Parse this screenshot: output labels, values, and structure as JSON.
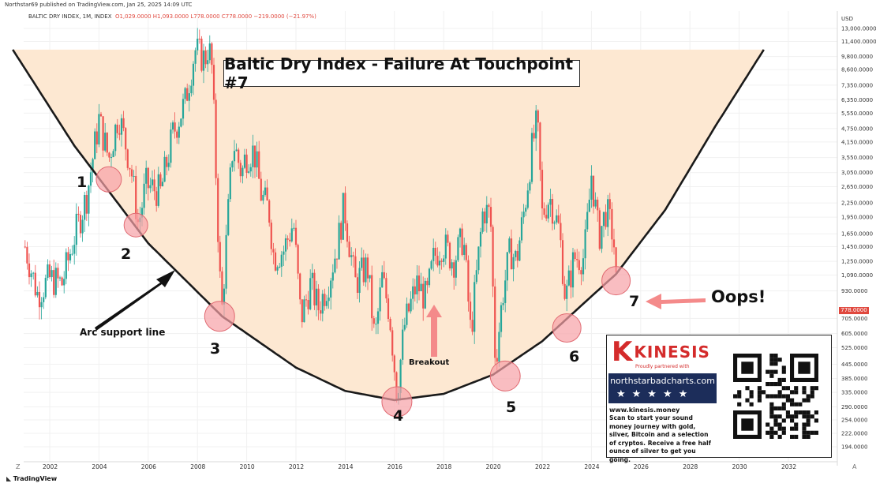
{
  "header": {
    "publisher": "Northstar69 published on TradingView.com, Jan 25, 2025 14:09 UTC",
    "symbol_line": "BALTIC DRY INDEX, 1M, INDEX",
    "ohlc": "O1,029.0000 H1,093.0000 L778.0000 C778.0000 −219.0000 (−21.97%)",
    "currency": "USD",
    "last_price": "778.0000"
  },
  "footer": {
    "brand": "TradingView",
    "left_corner": "Z",
    "right_corner": "A"
  },
  "chart_data": {
    "type": "candlestick",
    "title": "Baltic Dry Index - Failure At Touchpoint #7",
    "timeframe": "1M",
    "y_scale": "log",
    "y_ticks": [
      "13,000.0000",
      "11,400.0000",
      "9,800.0000",
      "8,600.0000",
      "7,350.0000",
      "6,350.0000",
      "5,550.0000",
      "4,750.0000",
      "4,150.0000",
      "3,550.0000",
      "3,050.0000",
      "2,650.0000",
      "2,250.0000",
      "1,950.0000",
      "1,650.0000",
      "1,450.0000",
      "1,250.0000",
      "1,090.0000",
      "930.0000",
      "705.0000",
      "605.0000",
      "525.0000",
      "445.0000",
      "385.0000",
      "335.0000",
      "290.0000",
      "254.0000",
      "222.0000",
      "194.0000"
    ],
    "x_ticks": [
      "2002",
      "2004",
      "2006",
      "2008",
      "2010",
      "2012",
      "2014",
      "2016",
      "2018",
      "2020",
      "2022",
      "2024",
      "2026",
      "2028",
      "2030",
      "2032"
    ],
    "series_points": [
      [
        2001.0,
        1450
      ],
      [
        2001.5,
        900
      ],
      [
        2002.0,
        1050
      ],
      [
        2002.5,
        1000
      ],
      [
        2003.0,
        1600
      ],
      [
        2003.5,
        2400
      ],
      [
        2004.0,
        5200
      ],
      [
        2004.4,
        3500
      ],
      [
        2004.8,
        5500
      ],
      [
        2005.3,
        3200
      ],
      [
        2005.6,
        1800
      ],
      [
        2005.9,
        2700
      ],
      [
        2006.5,
        2500
      ],
      [
        2007.0,
        4500
      ],
      [
        2007.5,
        6200
      ],
      [
        2007.9,
        10500
      ],
      [
        2008.3,
        9500
      ],
      [
        2008.45,
        11000
      ],
      [
        2008.6,
        8500
      ],
      [
        2008.9,
        1100
      ],
      [
        2009.0,
        780
      ],
      [
        2009.3,
        2500
      ],
      [
        2009.45,
        4200
      ],
      [
        2009.8,
        3000
      ],
      [
        2009.95,
        3600
      ],
      [
        2010.3,
        3800
      ],
      [
        2010.6,
        2400
      ],
      [
        2010.9,
        2100
      ],
      [
        2011.1,
        1300
      ],
      [
        2011.5,
        1400
      ],
      [
        2011.9,
        1850
      ],
      [
        2012.2,
        700
      ],
      [
        2012.6,
        1000
      ],
      [
        2012.9,
        780
      ],
      [
        2013.3,
        1000
      ],
      [
        2013.7,
        1500
      ],
      [
        2013.95,
        2200
      ],
      [
        2014.4,
        1000
      ],
      [
        2014.9,
        1200
      ],
      [
        2015.2,
        560
      ],
      [
        2015.5,
        1050
      ],
      [
        2015.8,
        750
      ],
      [
        2016.1,
        330
      ],
      [
        2016.4,
        650
      ],
      [
        2016.9,
        1000
      ],
      [
        2017.3,
        850
      ],
      [
        2017.6,
        1300
      ],
      [
        2017.95,
        1500
      ],
      [
        2018.4,
        1250
      ],
      [
        2018.8,
        1600
      ],
      [
        2019.1,
        600
      ],
      [
        2019.6,
        2100
      ],
      [
        2019.9,
        2000
      ],
      [
        2020.1,
        450
      ],
      [
        2020.4,
        900
      ],
      [
        2020.7,
        1400
      ],
      [
        2020.95,
        1250
      ],
      [
        2021.3,
        2200
      ],
      [
        2021.6,
        4000
      ],
      [
        2021.8,
        5100
      ],
      [
        2022.0,
        2000
      ],
      [
        2022.3,
        2400
      ],
      [
        2022.7,
        1700
      ],
      [
        2022.95,
        850
      ],
      [
        2023.3,
        1300
      ],
      [
        2023.7,
        1300
      ],
      [
        2023.9,
        2200
      ],
      [
        2024.0,
        3000
      ],
      [
        2024.3,
        1600
      ],
      [
        2024.6,
        2100
      ],
      [
        2024.9,
        1600
      ],
      [
        2025.05,
        778
      ]
    ],
    "arc_support_curve": [
      [
        2000.5,
        10500
      ],
      [
        2003.0,
        4000
      ],
      [
        2006.0,
        1500
      ],
      [
        2009.0,
        720
      ],
      [
        2012.0,
        430
      ],
      [
        2014.0,
        340
      ],
      [
        2016.0,
        310
      ],
      [
        2018.0,
        330
      ],
      [
        2020.0,
        400
      ],
      [
        2022.0,
        560
      ],
      [
        2024.0,
        880
      ],
      [
        2025.0,
        1100
      ],
      [
        2027.0,
        2100
      ],
      [
        2029.0,
        4800
      ],
      [
        2031.0,
        10500
      ]
    ],
    "touchpoints": [
      {
        "label": "1",
        "year": 2004.4,
        "value": 2850
      },
      {
        "label": "2",
        "year": 2005.5,
        "value": 1800
      },
      {
        "label": "3",
        "year": 2008.9,
        "value": 720
      },
      {
        "label": "4",
        "year": 2016.1,
        "value": 305
      },
      {
        "label": "5",
        "year": 2020.5,
        "value": 395
      },
      {
        "label": "6",
        "year": 2023.0,
        "value": 640
      },
      {
        "label": "7",
        "year": 2025.0,
        "value": 1030
      }
    ],
    "annotations": [
      "Arc support line",
      "Breakout",
      "Oops!"
    ],
    "colors": {
      "up": "#26a69a",
      "down": "#ef5350",
      "arc_fill": "#fde8d2",
      "circle": "#f7a1a6",
      "arrow": "#f48a8a"
    }
  },
  "ad": {
    "brand_letter": "K",
    "brand": "KINESIS",
    "partner_line": "Proudly partnered with",
    "site_banner": "northstarbadcharts.com",
    "website": "www.kinesis.money",
    "body": "Scan to start your sound money journey with gold, silver, Bitcoin and a selection of cryptos. Receive a free half ounce of silver to get you going."
  }
}
